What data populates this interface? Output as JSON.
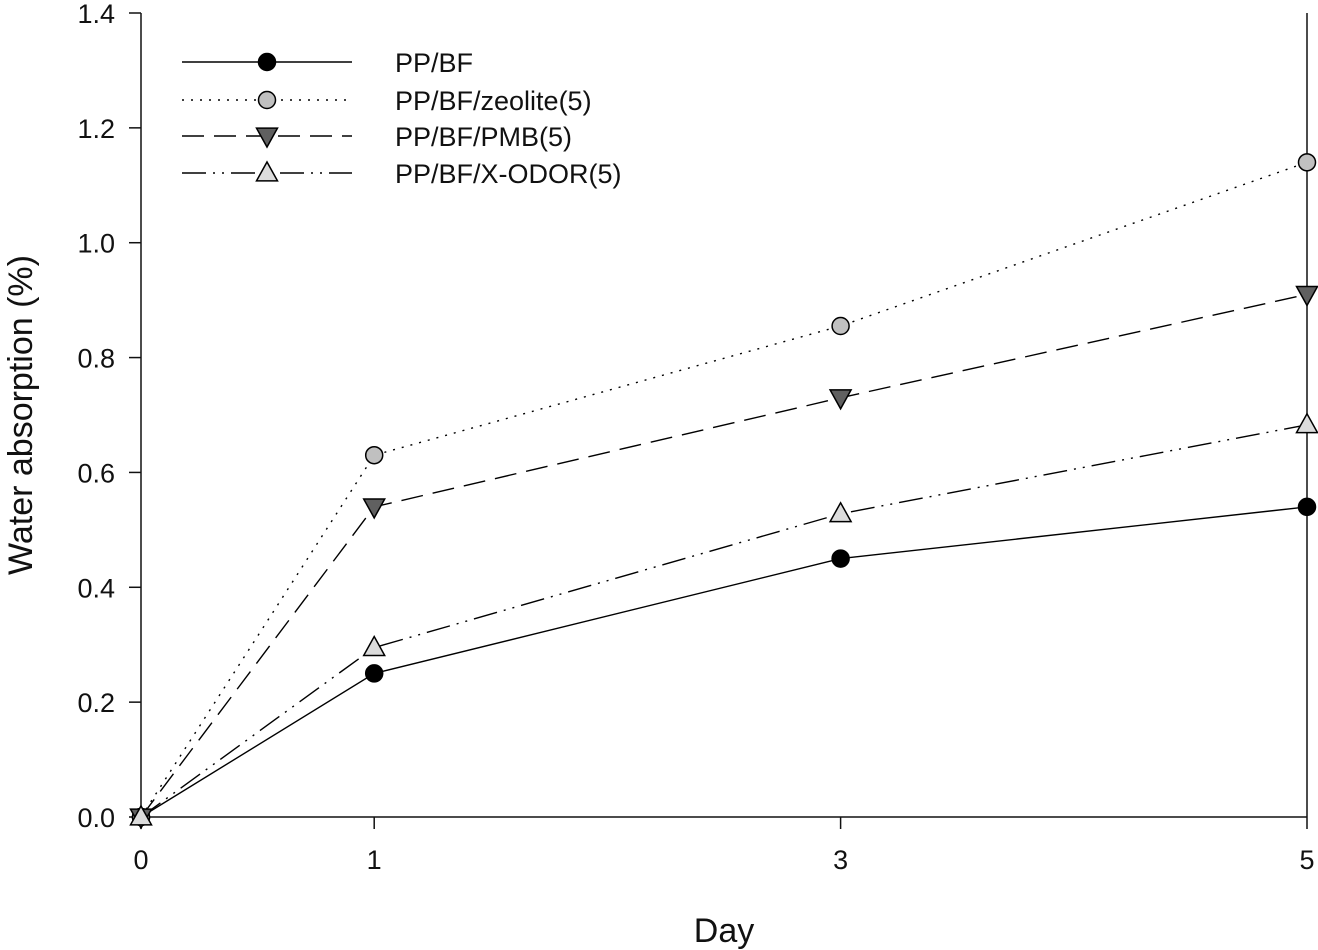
{
  "chart_data": {
    "type": "line",
    "title": "",
    "xlabel": "Day",
    "ylabel": "Water absorption (%)",
    "x": [
      0,
      1,
      3,
      5
    ],
    "x_ticks": [
      "0",
      "1",
      "3",
      "5"
    ],
    "y_ticks": [
      "0.0",
      "0.2",
      "0.4",
      "0.6",
      "0.8",
      "1.0",
      "1.2",
      "1.4"
    ],
    "xlim": [
      0,
      5
    ],
    "ylim": [
      0,
      1.4
    ],
    "grid": false,
    "legend_position": "top-left",
    "series": [
      {
        "name": "PP/BF",
        "values": [
          0.0,
          0.25,
          0.45,
          0.54
        ],
        "line_style": "solid",
        "marker": "circle",
        "marker_fill": "#000000"
      },
      {
        "name": "PP/BF/zeolite(5)",
        "values": [
          0.0,
          0.63,
          0.855,
          1.14
        ],
        "line_style": "dotted",
        "marker": "circle",
        "marker_fill": "#c0c0c0"
      },
      {
        "name": "PP/BF/PMB(5)",
        "values": [
          0.0,
          0.54,
          0.73,
          0.91
        ],
        "line_style": "dashed",
        "marker": "triangle-down",
        "marker_fill": "#606060"
      },
      {
        "name": "PP/BF/X-ODOR(5)",
        "values": [
          0.0,
          0.295,
          0.528,
          0.683
        ],
        "line_style": "dash-dot-dot",
        "marker": "triangle-up",
        "marker_fill": "#dcdcdc"
      }
    ]
  }
}
